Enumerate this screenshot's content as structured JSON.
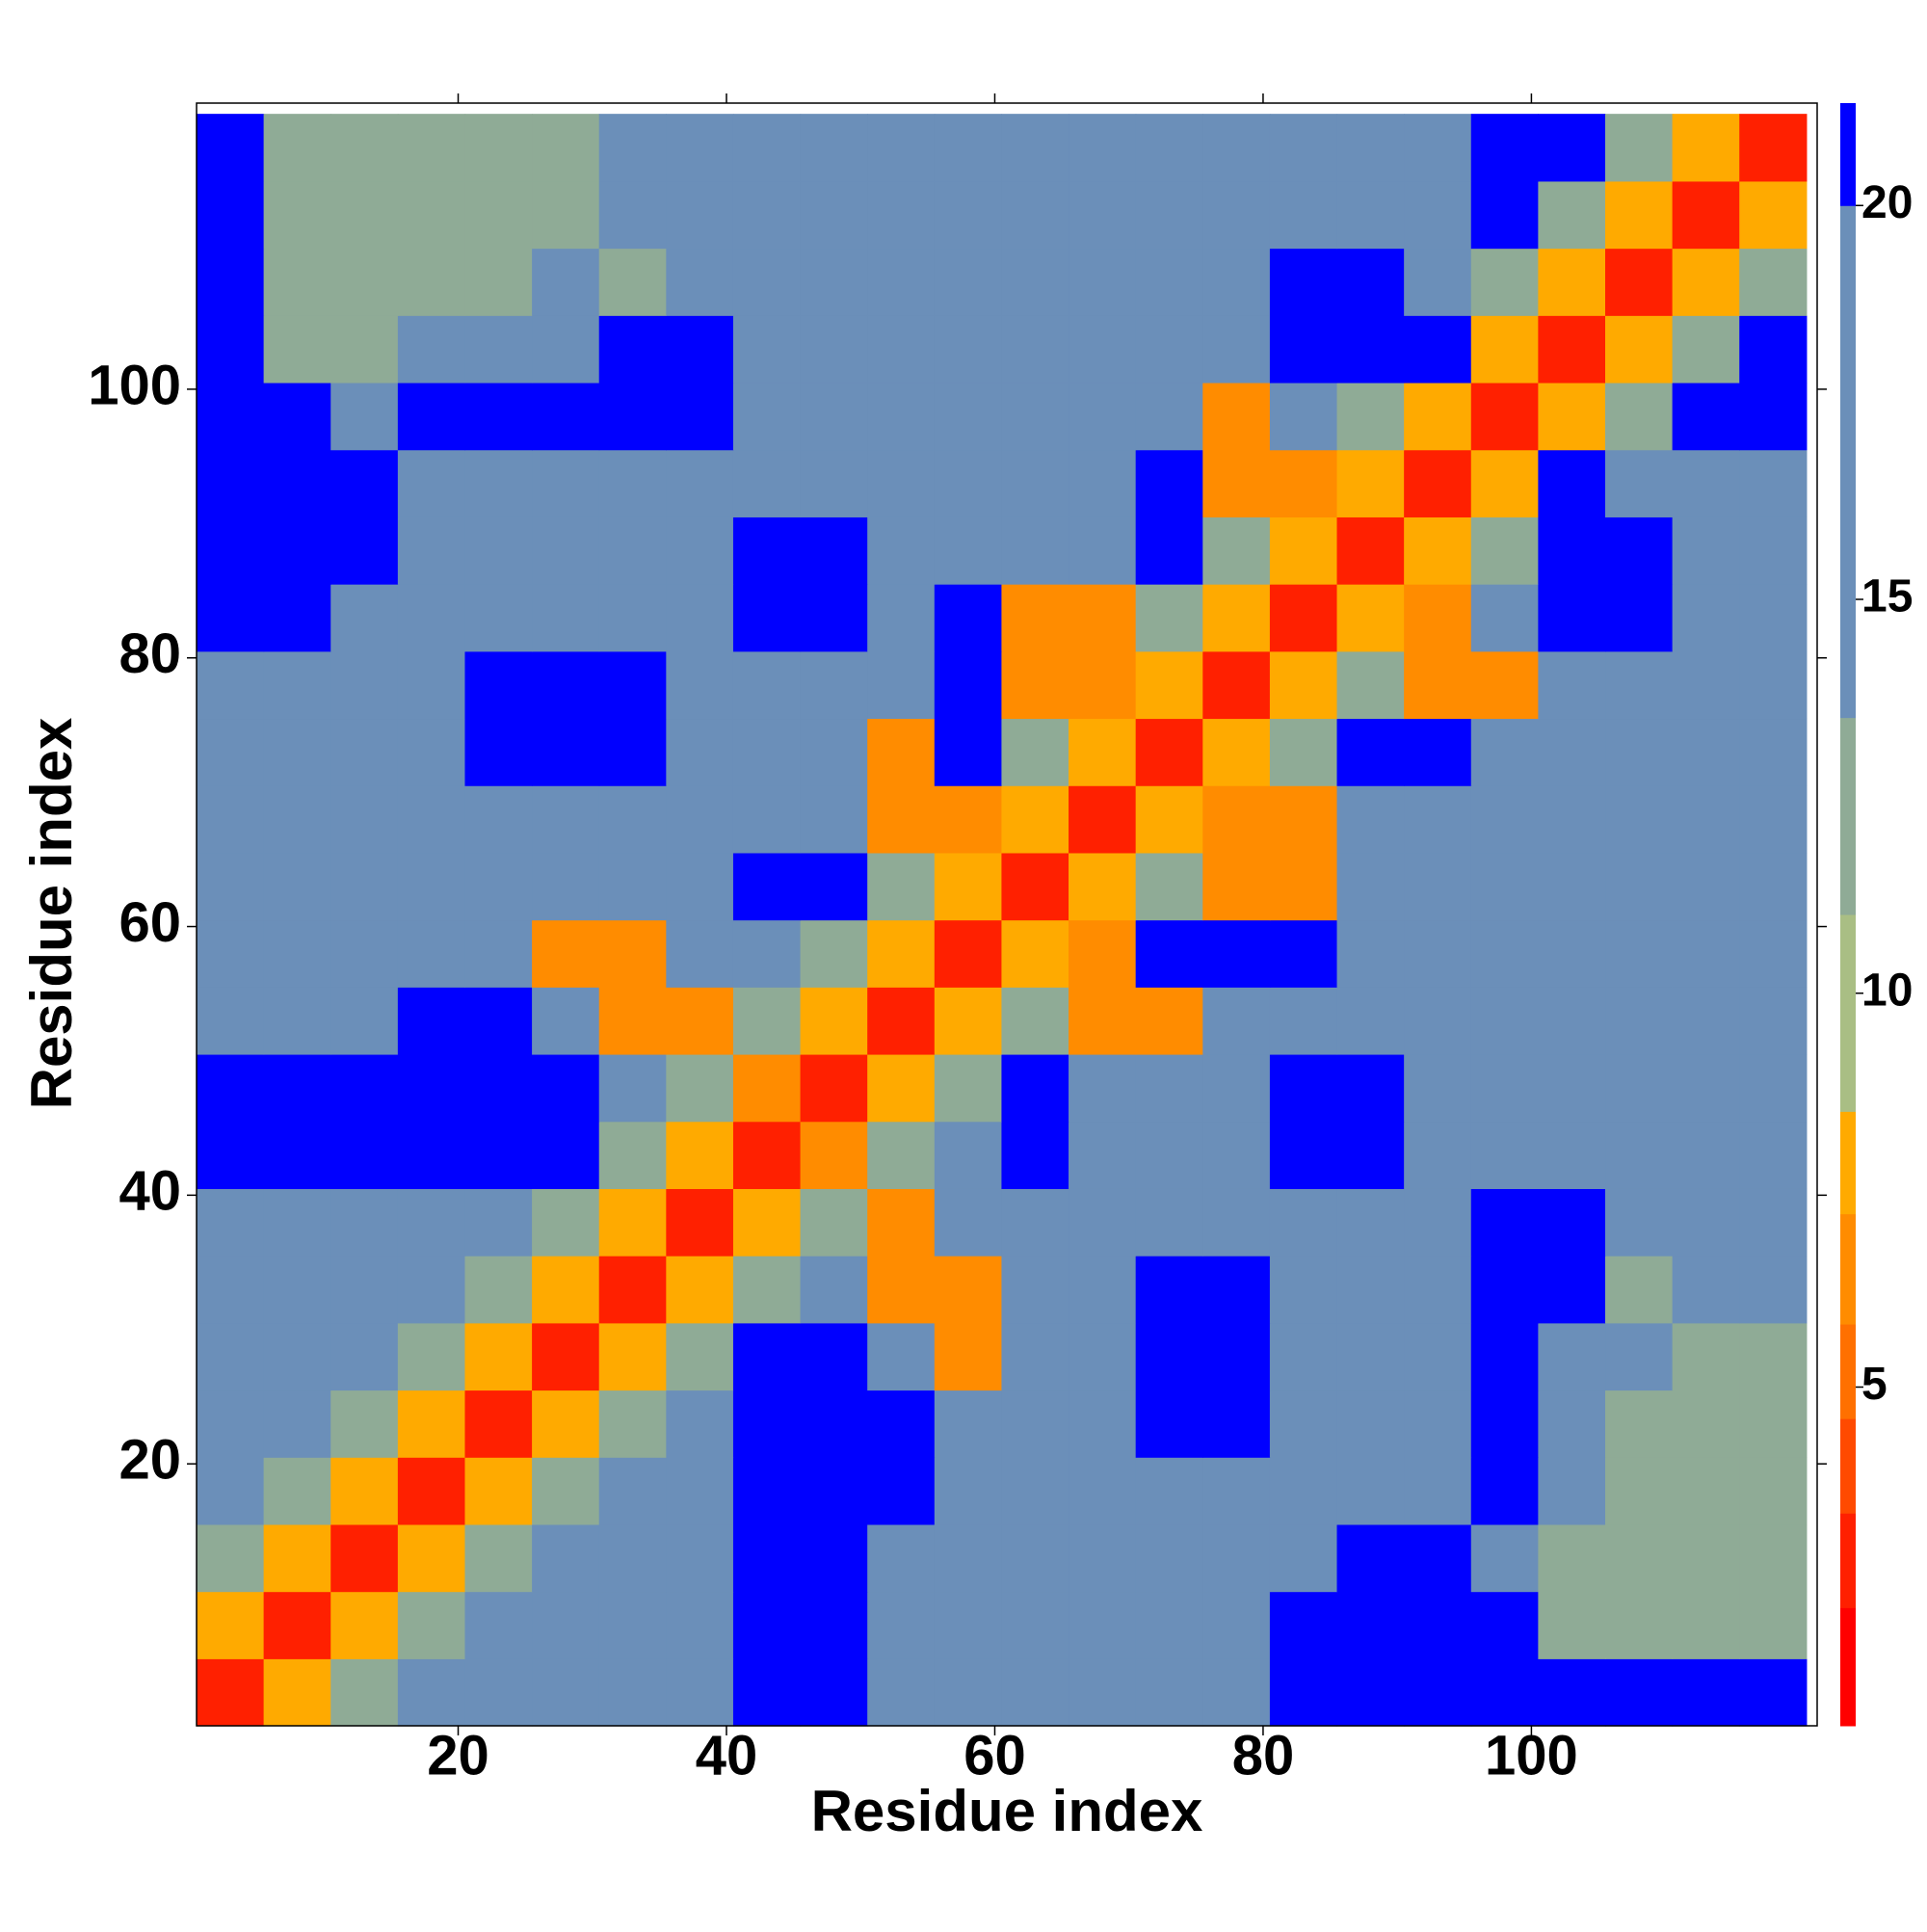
{
  "chart_data": {
    "type": "heatmap",
    "x_label": "Residue index",
    "y_label": "Residue index",
    "x_bins": [
      0.5,
      5.5,
      10.5,
      15.5,
      20.5,
      25.5,
      30.5,
      35.5,
      40.5,
      45.5,
      50.5,
      55.5,
      60.5,
      65.5,
      70.5,
      75.5,
      80.5,
      85.5,
      90.5,
      95.5,
      100.5,
      105.5,
      110.5,
      115.5,
      120.5
    ],
    "y_bins": [
      0.5,
      5.5,
      10.5,
      15.5,
      20.5,
      25.5,
      30.5,
      35.5,
      40.5,
      45.5,
      50.5,
      55.5,
      60.5,
      65.5,
      70.5,
      75.5,
      80.5,
      85.5,
      90.5,
      95.5,
      100.5,
      105.5,
      110.5,
      115.5,
      120.5
    ],
    "z": [
      [
        3,
        8,
        12,
        15,
        16,
        16,
        16,
        16,
        21,
        21,
        16,
        16,
        16,
        16,
        16,
        16,
        21,
        21,
        21,
        21,
        21,
        21,
        21,
        21
      ],
      [
        8,
        3,
        8,
        12,
        15,
        16,
        16,
        16,
        21,
        21,
        16,
        16,
        16,
        16,
        16,
        16,
        21,
        21,
        21,
        21,
        12,
        12,
        12,
        12
      ],
      [
        12,
        8,
        3,
        8,
        12,
        15,
        16,
        16,
        21,
        21,
        16,
        16,
        16,
        16,
        16,
        16,
        16,
        21,
        21,
        16,
        12,
        12,
        12,
        12
      ],
      [
        15,
        12,
        8,
        3,
        8,
        12,
        15,
        16,
        21,
        21,
        21,
        16,
        16,
        16,
        16,
        16,
        16,
        16,
        16,
        21,
        16,
        12,
        12,
        12
      ],
      [
        16,
        15,
        12,
        8,
        3,
        8,
        12,
        15,
        21,
        21,
        21,
        16,
        16,
        16,
        21,
        21,
        16,
        16,
        16,
        21,
        16,
        12,
        12,
        12
      ],
      [
        16,
        16,
        15,
        12,
        8,
        3,
        8,
        12,
        21,
        21,
        16,
        7,
        16,
        16,
        21,
        21,
        16,
        16,
        16,
        21,
        16,
        16,
        12,
        12
      ],
      [
        16,
        16,
        16,
        15,
        12,
        8,
        3,
        8,
        12,
        15,
        7,
        7,
        16,
        16,
        21,
        21,
        16,
        16,
        16,
        21,
        21,
        12,
        16,
        16
      ],
      [
        16,
        16,
        16,
        16,
        15,
        12,
        8,
        3,
        8,
        12,
        7,
        16,
        16,
        16,
        16,
        16,
        16,
        16,
        16,
        21,
        21,
        16,
        16,
        16
      ],
      [
        21,
        21,
        21,
        21,
        21,
        21,
        12,
        8,
        3,
        7,
        12,
        15,
        21,
        16,
        16,
        16,
        21,
        21,
        16,
        16,
        16,
        16,
        16,
        16
      ],
      [
        21,
        21,
        21,
        21,
        21,
        21,
        15,
        12,
        7,
        3,
        8,
        12,
        21,
        16,
        16,
        16,
        21,
        21,
        16,
        16,
        16,
        16,
        16,
        16
      ],
      [
        16,
        16,
        16,
        21,
        21,
        16,
        7,
        7,
        12,
        8,
        3,
        8,
        12,
        7,
        7,
        16,
        16,
        16,
        16,
        16,
        16,
        16,
        16,
        16
      ],
      [
        16,
        16,
        16,
        16,
        16,
        7,
        7,
        16,
        15,
        12,
        8,
        3,
        8,
        7,
        21,
        21,
        21,
        16,
        16,
        16,
        16,
        16,
        16,
        16
      ],
      [
        16,
        16,
        16,
        16,
        16,
        16,
        16,
        16,
        21,
        21,
        12,
        8,
        3,
        8,
        12,
        7,
        7,
        16,
        16,
        16,
        16,
        16,
        16,
        16
      ],
      [
        16,
        16,
        16,
        16,
        16,
        16,
        16,
        16,
        16,
        16,
        7,
        7,
        8,
        3,
        8,
        7,
        7,
        16,
        16,
        16,
        16,
        16,
        16,
        16
      ],
      [
        16,
        16,
        16,
        16,
        21,
        21,
        21,
        16,
        16,
        16,
        7,
        21,
        12,
        8,
        3,
        8,
        12,
        21,
        21,
        16,
        16,
        16,
        16,
        16
      ],
      [
        16,
        16,
        16,
        16,
        21,
        21,
        21,
        16,
        16,
        16,
        16,
        21,
        7,
        7,
        8,
        3,
        8,
        12,
        7,
        7,
        16,
        16,
        16,
        16
      ],
      [
        21,
        21,
        16,
        16,
        16,
        16,
        16,
        16,
        21,
        21,
        16,
        21,
        7,
        7,
        12,
        8,
        3,
        8,
        7,
        15,
        21,
        21,
        16,
        16
      ],
      [
        21,
        21,
        21,
        16,
        16,
        16,
        16,
        16,
        21,
        21,
        16,
        16,
        16,
        16,
        21,
        12,
        8,
        3,
        8,
        12,
        21,
        21,
        16,
        16
      ],
      [
        21,
        21,
        21,
        16,
        16,
        16,
        16,
        16,
        16,
        16,
        16,
        16,
        16,
        16,
        21,
        7,
        7,
        8,
        3,
        8,
        21,
        15,
        16,
        16
      ],
      [
        21,
        21,
        16,
        21,
        21,
        21,
        21,
        21,
        16,
        16,
        16,
        16,
        16,
        16,
        16,
        7,
        15,
        12,
        8,
        3,
        8,
        12,
        21,
        21
      ],
      [
        21,
        12,
        12,
        16,
        16,
        16,
        21,
        21,
        16,
        16,
        16,
        16,
        16,
        16,
        16,
        16,
        21,
        21,
        21,
        8,
        3,
        8,
        12,
        21
      ],
      [
        21,
        12,
        12,
        12,
        12,
        16,
        12,
        16,
        16,
        16,
        16,
        16,
        16,
        16,
        16,
        16,
        21,
        21,
        15,
        12,
        8,
        3,
        8,
        12
      ],
      [
        21,
        12,
        12,
        12,
        12,
        12,
        16,
        16,
        16,
        16,
        16,
        16,
        16,
        16,
        16,
        16,
        16,
        16,
        16,
        21,
        12,
        8,
        3,
        8
      ],
      [
        21,
        12,
        12,
        12,
        12,
        12,
        16,
        16,
        16,
        16,
        16,
        16,
        16,
        16,
        16,
        16,
        16,
        16,
        16,
        21,
        21,
        12,
        8,
        3
      ]
    ],
    "xlim": [
      0.5,
      121.3
    ],
    "ylim": [
      0.5,
      121.3
    ],
    "xticks": [
      20,
      40,
      60,
      80,
      100
    ],
    "yticks": [
      20,
      40,
      60,
      80,
      100
    ],
    "colorbar": {
      "bounds": [
        0.7,
        2.2,
        3.4,
        4.6,
        5.8,
        7.2,
        8.5,
        11,
        13.5,
        20,
        21.3
      ],
      "colors": [
        "#ff0000",
        "#ff2000",
        "#ff4a00",
        "#ff7000",
        "#ff8c00",
        "#ffaa00",
        "#a9be84",
        "#8fab96",
        "#6b8fb9",
        "#0000ff"
      ],
      "lim": [
        0.7,
        21.3
      ],
      "ticks": [
        5,
        10,
        15,
        20
      ]
    }
  }
}
